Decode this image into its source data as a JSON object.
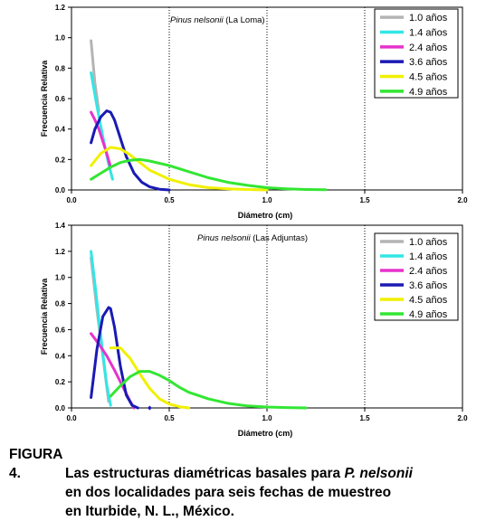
{
  "chart_data": [
    {
      "type": "line",
      "title_italic": "Pinus nelsonii",
      "title_rest": " (La Loma)",
      "xlabel": "Diámetro (cm)",
      "ylabel": "Frecuencia Relativa",
      "xlim": [
        0,
        2.0
      ],
      "ylim": [
        0,
        1.2
      ],
      "xticks": [
        "0.0",
        "0.5",
        "1.0",
        "1.5",
        "2.0"
      ],
      "xtick_values": [
        0,
        0.5,
        1.0,
        1.5,
        2.0
      ],
      "yticks": [
        "0.0",
        "0.2",
        "0.4",
        "0.6",
        "0.8",
        "1.0",
        "1.2"
      ],
      "ytick_values": [
        0,
        0.2,
        0.4,
        0.6,
        0.8,
        1.0,
        1.2
      ],
      "grid": "dotted-vertical",
      "legend_position": "top-right",
      "series": [
        {
          "name": "1.0 años",
          "color": "#b4b4b4",
          "x": [
            0.1,
            0.12,
            0.14
          ],
          "y": [
            0.98,
            0.7,
            0.52
          ]
        },
        {
          "name": "1.4 años",
          "color": "#33e6e6",
          "x": [
            0.1,
            0.13,
            0.16,
            0.19,
            0.21
          ],
          "y": [
            0.77,
            0.55,
            0.35,
            0.17,
            0.07
          ]
        },
        {
          "name": "2.4 años",
          "color": "#e633cc",
          "x": [
            0.1,
            0.12,
            0.14,
            0.16,
            0.18,
            0.2
          ],
          "y": [
            0.51,
            0.46,
            0.4,
            0.32,
            0.24,
            0.15
          ]
        },
        {
          "name": "3.6 años",
          "color": "#1a1ab4",
          "x": [
            0.1,
            0.12,
            0.15,
            0.18,
            0.2,
            0.22,
            0.25,
            0.28,
            0.32,
            0.36,
            0.4,
            0.45,
            0.5
          ],
          "y": [
            0.31,
            0.4,
            0.48,
            0.52,
            0.51,
            0.46,
            0.34,
            0.22,
            0.11,
            0.05,
            0.02,
            0.005,
            0.0
          ]
        },
        {
          "name": "4.5 años",
          "color": "#f0f000",
          "x": [
            0.1,
            0.15,
            0.2,
            0.25,
            0.3,
            0.35,
            0.4,
            0.5,
            0.6,
            0.7,
            0.8,
            0.9,
            1.0
          ],
          "y": [
            0.16,
            0.24,
            0.28,
            0.27,
            0.23,
            0.18,
            0.13,
            0.07,
            0.035,
            0.015,
            0.007,
            0.003,
            0.0
          ]
        },
        {
          "name": "4.9 años",
          "color": "#33e633",
          "x": [
            0.1,
            0.15,
            0.2,
            0.25,
            0.3,
            0.35,
            0.4,
            0.5,
            0.6,
            0.7,
            0.8,
            0.9,
            1.0,
            1.1,
            1.2,
            1.3
          ],
          "y": [
            0.07,
            0.11,
            0.15,
            0.18,
            0.195,
            0.2,
            0.19,
            0.16,
            0.12,
            0.08,
            0.05,
            0.03,
            0.015,
            0.007,
            0.003,
            0.001
          ]
        }
      ]
    },
    {
      "type": "line",
      "title_italic": "Pinus nelsonii",
      "title_rest": " (Las Adjuntas)",
      "xlabel": "Diámetro (cm)",
      "ylabel": "Frecuencia Relativa",
      "xlim": [
        0,
        2.0
      ],
      "ylim": [
        0,
        1.4
      ],
      "xticks": [
        "0.0",
        "0.5",
        "1.0",
        "1.5",
        "2.0"
      ],
      "xtick_values": [
        0,
        0.5,
        1.0,
        1.5,
        2.0
      ],
      "yticks": [
        "0.0",
        "0.2",
        "0.4",
        "0.6",
        "0.8",
        "1.0",
        "1.2",
        "1.4"
      ],
      "ytick_values": [
        0,
        0.2,
        0.4,
        0.6,
        0.8,
        1.0,
        1.2,
        1.4
      ],
      "grid": "dotted-vertical",
      "legend_position": "top-right",
      "series": [
        {
          "name": "1.0 años",
          "color": "#b4b4b4",
          "x": [
            0.1,
            0.13,
            0.16,
            0.19
          ],
          "y": [
            1.15,
            0.75,
            0.4,
            0.05
          ]
        },
        {
          "name": "1.4 años",
          "color": "#33e6e6",
          "x": [
            0.1,
            0.12,
            0.14,
            0.16,
            0.18,
            0.2
          ],
          "y": [
            1.2,
            0.95,
            0.68,
            0.42,
            0.18,
            0.02
          ]
        },
        {
          "name": "2.4 años",
          "color": "#e633cc",
          "x": [
            0.1,
            0.14,
            0.18,
            0.22,
            0.26,
            0.3,
            0.32
          ],
          "y": [
            0.57,
            0.49,
            0.4,
            0.29,
            0.17,
            0.05,
            0.0
          ]
        },
        {
          "name": "3.6 años",
          "color": "#1a1ab4",
          "x": [
            0.1,
            0.13,
            0.16,
            0.19,
            0.2,
            0.22,
            0.25,
            0.28,
            0.31,
            0.34
          ],
          "y": [
            0.08,
            0.45,
            0.7,
            0.77,
            0.76,
            0.62,
            0.32,
            0.1,
            0.02,
            0.0
          ],
          "marker": [
            0.4,
            0.0
          ]
        },
        {
          "name": "4.5 años",
          "color": "#f0f000",
          "x": [
            0.2,
            0.25,
            0.3,
            0.35,
            0.4,
            0.45,
            0.5,
            0.55,
            0.6
          ],
          "y": [
            0.46,
            0.46,
            0.38,
            0.26,
            0.15,
            0.07,
            0.03,
            0.01,
            0.0
          ]
        },
        {
          "name": "4.9 años",
          "color": "#33e633",
          "x": [
            0.2,
            0.25,
            0.3,
            0.35,
            0.4,
            0.45,
            0.5,
            0.55,
            0.6,
            0.7,
            0.8,
            0.9,
            1.0,
            1.1,
            1.2
          ],
          "y": [
            0.09,
            0.17,
            0.24,
            0.28,
            0.28,
            0.25,
            0.21,
            0.16,
            0.12,
            0.07,
            0.035,
            0.015,
            0.007,
            0.003,
            0.0
          ]
        }
      ]
    }
  ],
  "caption": {
    "label": "FIGURA 4.",
    "line1_pre": "Las estructuras diamétricas basales para ",
    "line1_ital": "P. nelsonii",
    "line2": "en dos localidades para seis fechas de muestreo",
    "line3": "en Iturbide, N. L., México."
  }
}
